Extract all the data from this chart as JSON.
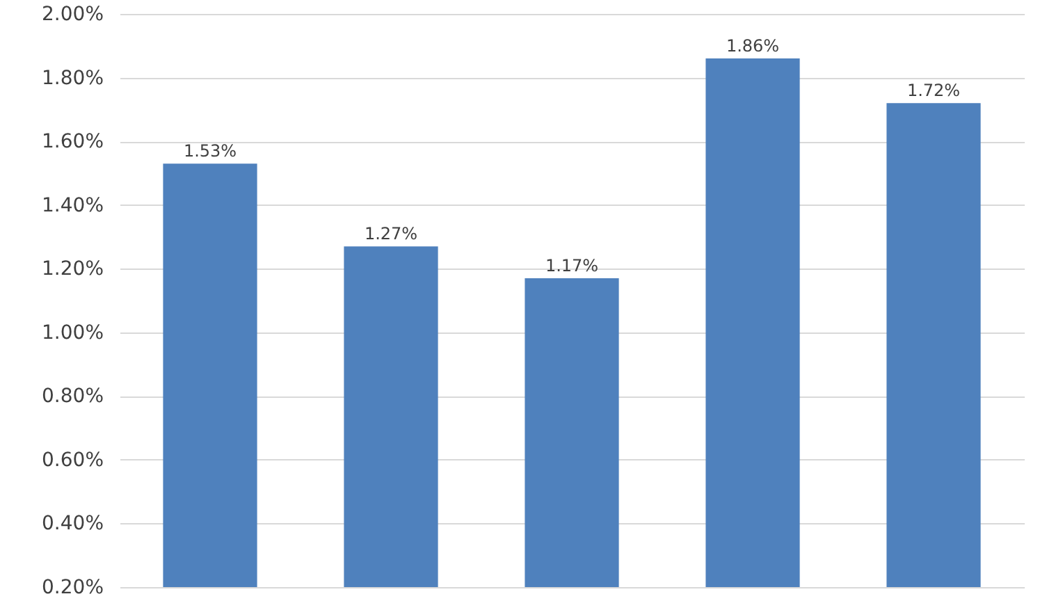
{
  "chart_data": {
    "type": "bar",
    "categories": [
      null,
      null,
      null,
      null,
      null
    ],
    "values": [
      1.53,
      1.27,
      1.17,
      1.86,
      1.72
    ],
    "value_labels": [
      "1.53%",
      "1.27%",
      "1.17%",
      "1.86%",
      "1.72%"
    ],
    "color": "#4f81bd",
    "ylim": [
      0.2,
      2.0
    ],
    "yticks": [
      {
        "value": 0.2,
        "label": "0.20%"
      },
      {
        "value": 0.4,
        "label": "0.40%"
      },
      {
        "value": 0.6,
        "label": "0.60%"
      },
      {
        "value": 0.8,
        "label": "0.80%"
      },
      {
        "value": 1.0,
        "label": "1.00%"
      },
      {
        "value": 1.2,
        "label": "1.20%"
      },
      {
        "value": 1.4,
        "label": "1.40%"
      },
      {
        "value": 1.6,
        "label": "1.60%"
      },
      {
        "value": 1.8,
        "label": "1.80%"
      },
      {
        "value": 2.0,
        "label": "2.00%"
      }
    ],
    "grid": "y"
  }
}
